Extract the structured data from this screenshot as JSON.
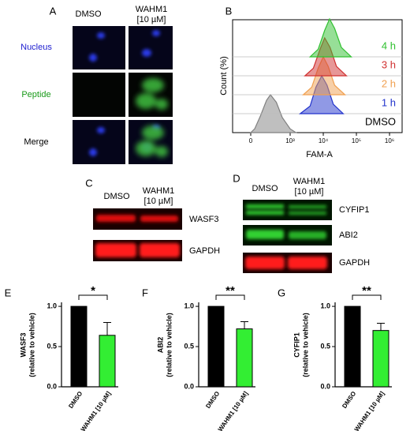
{
  "panels": {
    "A": {
      "label": "A",
      "columns": [
        [
          "DMSO"
        ],
        [
          "WAHM1",
          "[10 µM]"
        ]
      ],
      "rows": [
        "Nucleus",
        "Peptide",
        "Merge"
      ]
    },
    "C": {
      "label": "C",
      "columns": [
        [
          "DMSO"
        ],
        [
          "WAHM1",
          "[10 µM]"
        ]
      ],
      "rows": [
        "WASF3",
        "GAPDH"
      ]
    },
    "D": {
      "label": "D",
      "columns": [
        [
          "DMSO"
        ],
        [
          "WAHM1",
          "[10 µM]"
        ]
      ],
      "rows": [
        "CYFIP1",
        "ABI2",
        "GAPDH"
      ]
    }
  },
  "chart_data": [
    {
      "type": "density",
      "panel_label": "B",
      "xlabel": "FAM-A",
      "ylabel": "Count (%)",
      "xscale": "biexponential",
      "xlim": [
        -460,
        2400000
      ],
      "xticks": [
        {
          "value": 0,
          "label": "0"
        },
        {
          "value": 1000,
          "label": "10³"
        },
        {
          "value": 10000,
          "label": "10⁴"
        },
        {
          "value": 100000,
          "label": "10⁵"
        },
        {
          "value": 1000000,
          "label": "10⁶"
        }
      ],
      "ylim": [
        0,
        100
      ],
      "series": [
        {
          "name": "DMSO",
          "color": "#808080",
          "x": [
            0,
            100,
            250,
            400,
            500,
            650,
            800,
            1000,
            1500
          ],
          "values": [
            0,
            10,
            45,
            85,
            100,
            80,
            40,
            10,
            0
          ]
        },
        {
          "name": "1 h",
          "color": "#2233cc",
          "x": [
            2000,
            4000,
            6000,
            9000,
            13000,
            20000,
            40000
          ],
          "values": [
            0,
            20,
            70,
            100,
            75,
            25,
            0
          ]
        },
        {
          "name": "2 h",
          "color": "#f0a050",
          "x": [
            2500,
            4500,
            7000,
            10000,
            14000,
            22000,
            45000
          ],
          "values": [
            0,
            20,
            70,
            100,
            75,
            25,
            0
          ]
        },
        {
          "name": "3 h",
          "color": "#d03030",
          "x": [
            2800,
            5000,
            8000,
            11000,
            16000,
            25000,
            50000
          ],
          "values": [
            0,
            20,
            70,
            100,
            75,
            25,
            0
          ]
        },
        {
          "name": "4 h",
          "color": "#30c030",
          "x": [
            4000,
            7000,
            11000,
            15500,
            22000,
            35000,
            70000
          ],
          "values": [
            0,
            20,
            70,
            100,
            75,
            25,
            0
          ]
        }
      ]
    },
    {
      "type": "bar",
      "panel_label": "E",
      "ylabel": [
        "WASF3",
        "(relative to vehicle)"
      ],
      "categories": [
        "DMSO",
        "WAHM1 [10 µM]"
      ],
      "values": [
        1.0,
        0.64
      ],
      "errors": [
        null,
        0.16
      ],
      "colors": [
        "#000000",
        "#33ee33"
      ],
      "significance": "*",
      "ylim": [
        0,
        1.05
      ],
      "yticks": [
        {
          "value": 0,
          "label": "0.0"
        },
        {
          "value": 0.5,
          "label": "0.5"
        },
        {
          "value": 1,
          "label": "1.0"
        }
      ]
    },
    {
      "type": "bar",
      "panel_label": "F",
      "ylabel": [
        "ABI2",
        "(relative to vehicle)"
      ],
      "categories": [
        "DMSO",
        "WAHM1 [10 µM]"
      ],
      "values": [
        1.0,
        0.72
      ],
      "errors": [
        null,
        0.09
      ],
      "colors": [
        "#000000",
        "#33ee33"
      ],
      "significance": "**",
      "ylim": [
        0,
        1.05
      ],
      "yticks": [
        {
          "value": 0,
          "label": "0.0"
        },
        {
          "value": 0.5,
          "label": "0.5"
        },
        {
          "value": 1,
          "label": "1.0"
        }
      ]
    },
    {
      "type": "bar",
      "panel_label": "G",
      "ylabel": [
        "CYFIP1",
        "(relative to vehicle)"
      ],
      "categories": [
        "DMSO",
        "WAHM1 [10 µM]"
      ],
      "values": [
        1.0,
        0.7
      ],
      "errors": [
        null,
        0.09
      ],
      "colors": [
        "#000000",
        "#33ee33"
      ],
      "significance": "**",
      "ylim": [
        0,
        1.05
      ],
      "yticks": [
        {
          "value": 0,
          "label": "0.0"
        },
        {
          "value": 0.5,
          "label": "0.5"
        },
        {
          "value": 1,
          "label": "1.0"
        }
      ]
    }
  ]
}
